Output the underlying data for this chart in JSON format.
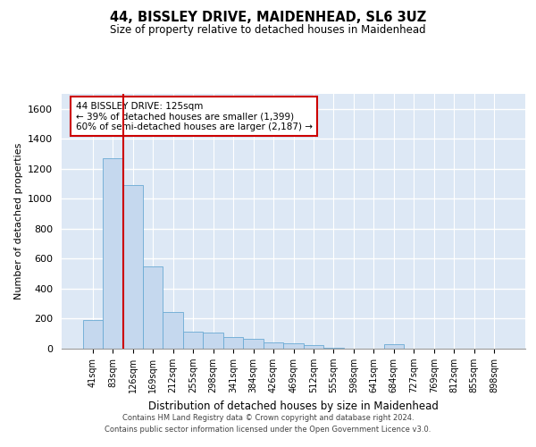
{
  "title": "44, BISSLEY DRIVE, MAIDENHEAD, SL6 3UZ",
  "subtitle": "Size of property relative to detached houses in Maidenhead",
  "xlabel": "Distribution of detached houses by size in Maidenhead",
  "ylabel": "Number of detached properties",
  "bar_color": "#c5d8ee",
  "bar_edge_color": "#6aaad4",
  "background_color": "#dde8f5",
  "categories": [
    "41sqm",
    "83sqm",
    "126sqm",
    "169sqm",
    "212sqm",
    "255sqm",
    "298sqm",
    "341sqm",
    "384sqm",
    "426sqm",
    "469sqm",
    "512sqm",
    "555sqm",
    "598sqm",
    "641sqm",
    "684sqm",
    "727sqm",
    "769sqm",
    "812sqm",
    "855sqm",
    "898sqm"
  ],
  "values": [
    193,
    1270,
    1090,
    550,
    245,
    115,
    110,
    75,
    65,
    40,
    35,
    25,
    5,
    0,
    0,
    30,
    0,
    0,
    0,
    0,
    0
  ],
  "ylim": [
    0,
    1700
  ],
  "yticks": [
    0,
    200,
    400,
    600,
    800,
    1000,
    1200,
    1400,
    1600
  ],
  "property_line_color": "#cc0000",
  "annotation_title": "44 BISSLEY DRIVE: 125sqm",
  "annotation_line1": "← 39% of detached houses are smaller (1,399)",
  "annotation_line2": "60% of semi-detached houses are larger (2,187) →",
  "annotation_box_color": "#ffffff",
  "annotation_box_edge": "#cc0000",
  "footer_line1": "Contains HM Land Registry data © Crown copyright and database right 2024.",
  "footer_line2": "Contains public sector information licensed under the Open Government Licence v3.0.",
  "fig_width": 6.0,
  "fig_height": 5.0,
  "dpi": 100
}
